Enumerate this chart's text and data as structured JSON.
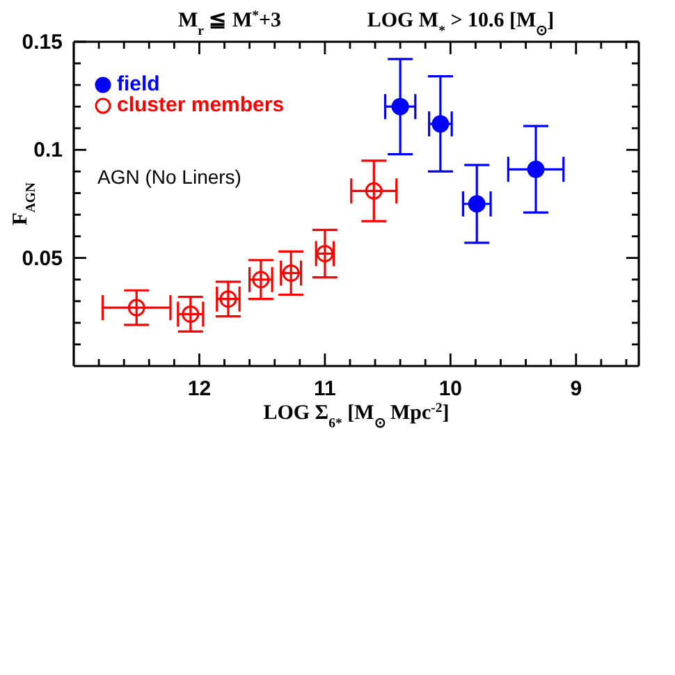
{
  "chart_data": {
    "type": "scatter",
    "title": "M$_{r}$ ≦ M$^{*}$+3",
    "subtitle": "LOG M$_{*}$ > 10.6 [M$_{⊙}$]",
    "xlabel": "LOG Σ$_{6*}$ [M$_{⊙}$ Mpc$^{-2}$]",
    "ylabel": "F$_{AGN}$",
    "annotations": [
      "AGN (No Liners)"
    ],
    "xlim": [
      13,
      8.5
    ],
    "xticks": [
      {
        "value": 12.8,
        "label": null
      },
      {
        "value": 12.6,
        "label": null
      },
      {
        "value": 12.4,
        "label": null
      },
      {
        "value": 12.2,
        "label": null
      },
      12,
      {
        "value": 11.8,
        "label": null
      },
      {
        "value": 11.6,
        "label": null
      },
      {
        "value": 11.4,
        "label": null
      },
      {
        "value": 11.2,
        "label": null
      },
      11,
      {
        "value": 10.8,
        "label": null
      },
      {
        "value": 10.6,
        "label": null
      },
      {
        "value": 10.4,
        "label": null
      },
      {
        "value": 10.2,
        "label": null
      },
      10,
      {
        "value": 9.8,
        "label": null
      },
      {
        "value": 9.6,
        "label": null
      },
      {
        "value": 9.4,
        "label": null
      },
      {
        "value": 9.2,
        "label": null
      },
      9,
      {
        "value": 8.8,
        "label": null
      },
      {
        "value": 8.6,
        "label": null
      }
    ],
    "ylim": [
      0,
      0.15
    ],
    "yticks": [
      {
        "value": 0.01,
        "label": null
      },
      {
        "value": 0.02,
        "label": null
      },
      {
        "value": 0.03,
        "label": null
      },
      {
        "value": 0.04,
        "label": null
      },
      0.05,
      {
        "value": 0.06,
        "label": null
      },
      {
        "value": 0.07,
        "label": null
      },
      {
        "value": 0.08,
        "label": null
      },
      {
        "value": 0.09,
        "label": null
      },
      0.1,
      {
        "value": 0.11,
        "label": null
      },
      {
        "value": 0.12,
        "label": null
      },
      {
        "value": 0.13,
        "label": null
      },
      {
        "value": 0.14,
        "label": null
      },
      0.15
    ],
    "series": [
      {
        "name": "field",
        "color": "#0000ff",
        "x": [
          10.4,
          10.08,
          9.79,
          9.32
        ],
        "values": [
          0.12,
          0.112,
          0.075,
          0.091
        ],
        "errors": [
          0.022,
          0.022,
          0.018,
          0.02
        ],
        "xerrors": [
          0.12,
          0.09,
          0.11,
          0.22
        ]
      },
      {
        "name": "cluster members",
        "color": "#ff0000",
        "x": [
          12.5,
          12.07,
          11.77,
          11.51,
          11.27,
          11.0,
          10.61
        ],
        "values": [
          0.027,
          0.024,
          0.031,
          0.04,
          0.043,
          0.052,
          0.081
        ],
        "errors": [
          0.008,
          0.008,
          0.008,
          0.009,
          0.01,
          0.011,
          0.014
        ],
        "xerrors": [
          0.27,
          0.1,
          0.09,
          0.09,
          0.08,
          0.07,
          0.18
        ]
      }
    ],
    "legend": "top left",
    "marker": "circle"
  }
}
